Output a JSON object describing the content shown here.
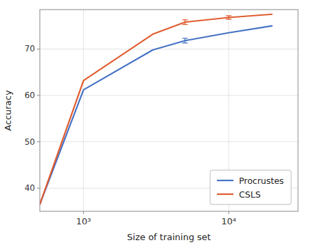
{
  "chart_data": {
    "type": "line",
    "x_label": "Size of training set",
    "y_label": "Accuracy",
    "x": [
      500,
      1000,
      3000,
      5000,
      10000,
      20000
    ],
    "series": [
      {
        "name": "Procrustes",
        "color": "#4472c4",
        "values": [
          36.5,
          61.2,
          69.8,
          71.8,
          73.5,
          75.0
        ],
        "errors": [
          null,
          null,
          null,
          0.5,
          null,
          null
        ]
      },
      {
        "name": "CSLS",
        "color": "#e05c2e",
        "values": [
          36.5,
          63.2,
          73.2,
          75.8,
          76.8,
          77.5
        ],
        "errors": [
          null,
          null,
          null,
          0.5,
          0.4,
          null
        ]
      }
    ],
    "xlim": [
      500,
      30000
    ],
    "ylim": [
      35,
      78.5
    ],
    "xticks": [
      {
        "value": 1000,
        "label": "10³"
      },
      {
        "value": 10000,
        "label": "10⁴"
      }
    ],
    "yticks": [
      40,
      50,
      60,
      70
    ],
    "log": "x",
    "grid": true,
    "legend": "lower right"
  }
}
